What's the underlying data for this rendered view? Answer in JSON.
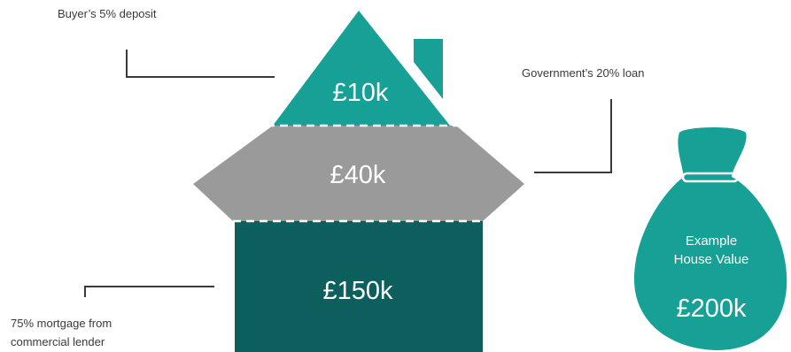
{
  "colors": {
    "teal": "#16a096",
    "grey": "#9a9a9a",
    "dark_teal": "#0d5f5d",
    "bag": "#16a096",
    "leader": "#3a3a3a"
  },
  "segments": {
    "deposit": {
      "label": "Buyer’s 5% deposit",
      "value": "£10k",
      "percent": 5
    },
    "loan": {
      "label": "Government’s 20% loan",
      "value": "£40k",
      "percent": 20
    },
    "mortgage": {
      "label_line1": "75% mortgage from",
      "label_line2": "commercial lender",
      "value": "£150k",
      "percent": 75
    }
  },
  "bag": {
    "line1": "Example",
    "line2": "House Value",
    "value": "£200k"
  }
}
